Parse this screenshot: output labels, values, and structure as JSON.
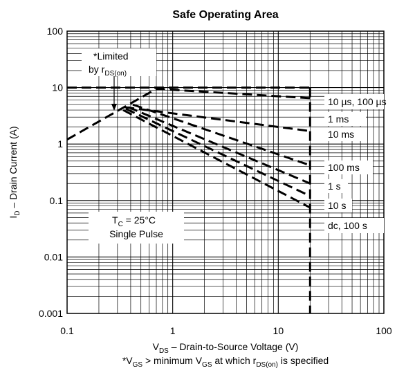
{
  "chart_data": {
    "type": "line",
    "title": "Safe Operating Area",
    "x_scale": "log",
    "y_scale": "log",
    "xlim": [
      0.1,
      100
    ],
    "ylim": [
      0.001,
      100
    ],
    "grid": true,
    "x_ticks": [
      "0.1",
      "1",
      "10",
      "100"
    ],
    "y_ticks": [
      "0.001",
      "0.01",
      "0.1",
      "1",
      "10",
      "100"
    ],
    "xlabel": {
      "main": "V",
      "sub": "DS",
      "rest": "  –  Drain-to-Source Voltage (V)"
    },
    "ylabel": {
      "main": "I",
      "sub": "D",
      "rest": " – Drain Current (A)"
    },
    "footnote": {
      "p1": "*V",
      "s1": "GS",
      "p2": " > minimum V",
      "s2": "GS",
      "p3": " at which r",
      "s3": "DS(on)",
      "p4": " is specified"
    },
    "annotations": {
      "limited_line1": "*Limited",
      "limited_line2_main": "by r",
      "limited_line2_sub": "DS(on)",
      "tc_main": "T",
      "tc_sub": "C",
      "tc_rest": " = 25°C",
      "single_pulse": "Single Pulse"
    },
    "series": [
      {
        "name": "10 µs, 100 µs",
        "points": [
          [
            0.1,
            10
          ],
          [
            20,
            10
          ]
        ]
      },
      {
        "name": "1 ms",
        "points": [
          [
            0.1,
            1.2
          ],
          [
            0.7,
            9.5
          ],
          [
            20,
            6.5
          ]
        ]
      },
      {
        "name": "10 ms",
        "points": [
          [
            0.35,
            4.5
          ],
          [
            20,
            1.7
          ]
        ]
      },
      {
        "name": "100 ms",
        "points": [
          [
            0.42,
            5
          ],
          [
            20,
            0.42
          ]
        ]
      },
      {
        "name": "1 s",
        "points": [
          [
            0.38,
            4.5
          ],
          [
            20,
            0.2
          ]
        ]
      },
      {
        "name": "10 s",
        "points": [
          [
            0.36,
            4.2
          ],
          [
            20,
            0.12
          ]
        ]
      },
      {
        "name": "dc, 100 s",
        "points": [
          [
            0.34,
            4
          ],
          [
            20,
            0.075
          ]
        ]
      },
      {
        "name": "",
        "points": [
          [
            20,
            10
          ],
          [
            20,
            0.001
          ]
        ]
      }
    ]
  }
}
